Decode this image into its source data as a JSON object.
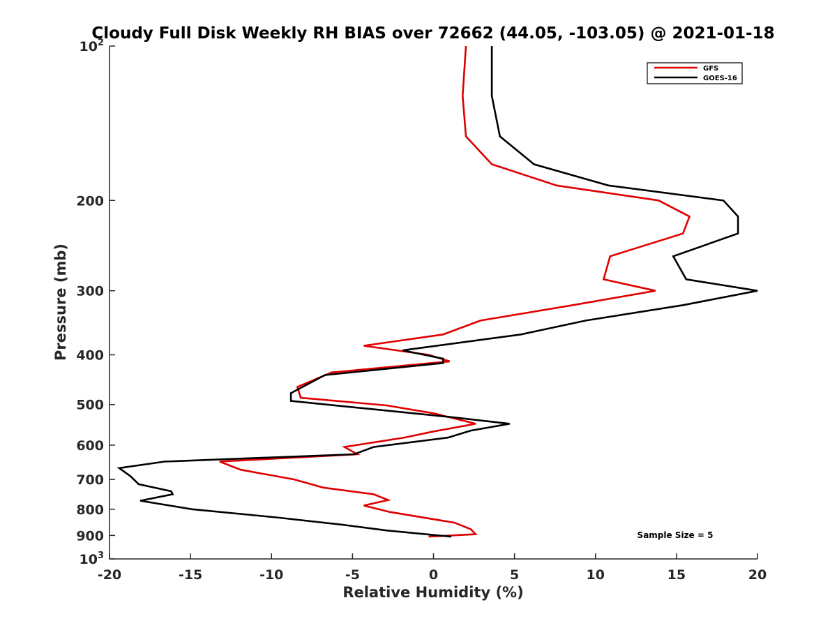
{
  "chart_data": {
    "type": "line",
    "title": "Cloudy Full Disk Weekly RH BIAS over 72662 (44.05, -103.05) @ 2021-01-18",
    "xlabel": "Relative Humidity (%)",
    "ylabel": "Pressure (mb)",
    "xlim": [
      -20,
      20
    ],
    "ylim": [
      100,
      1000
    ],
    "y_scale": "log",
    "y_reversed": true,
    "grid": false,
    "legend_position": "top-right",
    "x_ticks": [
      -20,
      -15,
      -10,
      -5,
      0,
      5,
      10,
      15,
      20
    ],
    "x_tick_labels": [
      "-20",
      "-15",
      "-10",
      "-5",
      "0",
      "5",
      "10",
      "15",
      "20"
    ],
    "y_ticks": [
      100,
      200,
      300,
      400,
      500,
      600,
      700,
      800,
      900,
      1000
    ],
    "y_tick_labels": [
      {
        "base": "10",
        "exp": "2"
      },
      {
        "base": "200",
        "exp": ""
      },
      {
        "base": "300",
        "exp": ""
      },
      {
        "base": "400",
        "exp": ""
      },
      {
        "base": "500",
        "exp": ""
      },
      {
        "base": "600",
        "exp": ""
      },
      {
        "base": "700",
        "exp": ""
      },
      {
        "base": "800",
        "exp": ""
      },
      {
        "base": "900",
        "exp": ""
      },
      {
        "base": "10",
        "exp": "3"
      }
    ],
    "annotation": "Sample Size = 5",
    "series": [
      {
        "name": "GFS",
        "color": "#e00000",
        "points": [
          [
            2.0,
            100
          ],
          [
            1.8,
            125
          ],
          [
            2.0,
            150
          ],
          [
            3.6,
            170
          ],
          [
            7.6,
            187
          ],
          [
            13.9,
            200
          ],
          [
            15.8,
            215
          ],
          [
            15.4,
            232
          ],
          [
            10.9,
            257
          ],
          [
            10.5,
            285
          ],
          [
            13.7,
            300
          ],
          [
            8.6,
            320
          ],
          [
            2.9,
            343
          ],
          [
            0.6,
            365
          ],
          [
            -4.3,
            384
          ],
          [
            -0.3,
            400
          ],
          [
            1.0,
            412
          ],
          [
            -6.3,
            433
          ],
          [
            -8.4,
            462
          ],
          [
            -8.2,
            485
          ],
          [
            -2.9,
            502
          ],
          [
            0.0,
            520
          ],
          [
            2.6,
            545
          ],
          [
            -0.1,
            565
          ],
          [
            -1.8,
            580
          ],
          [
            -5.5,
            605
          ],
          [
            -4.7,
            625
          ],
          [
            -13.2,
            646
          ],
          [
            -11.9,
            670
          ],
          [
            -8.6,
            700
          ],
          [
            -6.8,
            726
          ],
          [
            -3.7,
            748
          ],
          [
            -2.8,
            768
          ],
          [
            -4.3,
            787
          ],
          [
            -2.7,
            810
          ],
          [
            1.3,
            850
          ],
          [
            2.3,
            875
          ],
          [
            2.6,
            895
          ],
          [
            -0.3,
            905
          ]
        ]
      },
      {
        "name": "GOES-16",
        "color": "#000000",
        "points": [
          [
            3.6,
            100
          ],
          [
            3.6,
            125
          ],
          [
            4.1,
            150
          ],
          [
            6.2,
            170
          ],
          [
            10.8,
            187
          ],
          [
            17.9,
            200
          ],
          [
            18.8,
            215
          ],
          [
            18.8,
            232
          ],
          [
            14.8,
            257
          ],
          [
            15.6,
            285
          ],
          [
            20.0,
            300
          ],
          [
            15.4,
            320
          ],
          [
            9.4,
            343
          ],
          [
            5.4,
            365
          ],
          [
            -1.9,
            392
          ],
          [
            0.6,
            407
          ],
          [
            0.6,
            415
          ],
          [
            -6.7,
            438
          ],
          [
            -8.8,
            475
          ],
          [
            -8.8,
            492
          ],
          [
            -3.9,
            510
          ],
          [
            1.3,
            530
          ],
          [
            4.7,
            545
          ],
          [
            2.3,
            562
          ],
          [
            0.9,
            580
          ],
          [
            -3.7,
            605
          ],
          [
            -4.9,
            625
          ],
          [
            -16.6,
            646
          ],
          [
            -19.4,
            665
          ],
          [
            -18.7,
            690
          ],
          [
            -18.2,
            715
          ],
          [
            -16.2,
            738
          ],
          [
            -16.1,
            748
          ],
          [
            -18.1,
            770
          ],
          [
            -14.9,
            800
          ],
          [
            -9.7,
            830
          ],
          [
            -5.6,
            858
          ],
          [
            -2.9,
            880
          ],
          [
            1.1,
            905
          ]
        ]
      }
    ]
  }
}
